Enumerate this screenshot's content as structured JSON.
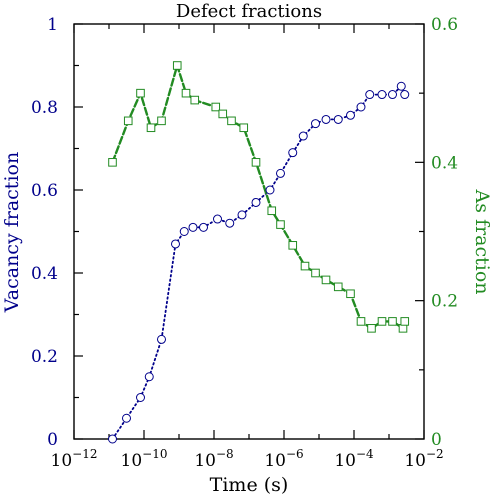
{
  "chart_data": {
    "type": "line",
    "title": "Defect fractions",
    "xlabel": "Time (s)",
    "x_scale": "log",
    "xlim_exponents": [
      -12,
      -2
    ],
    "x_ticks": [
      {
        "base": "10",
        "exp": "−12"
      },
      {
        "base": "10",
        "exp": "−10"
      },
      {
        "base": "10",
        "exp": "−8"
      },
      {
        "base": "10",
        "exp": "−6"
      },
      {
        "base": "10",
        "exp": "−4"
      },
      {
        "base": "10",
        "exp": "−2"
      }
    ],
    "left_axis": {
      "label": "Vacancy fraction",
      "color": "#00008b",
      "ylim": [
        0,
        1
      ],
      "ticks": [
        "0",
        "0.2",
        "0.4",
        "0.6",
        "0.8",
        "1"
      ],
      "tick_values": [
        0,
        0.2,
        0.4,
        0.6,
        0.8,
        1
      ]
    },
    "right_axis": {
      "label": "As fraction",
      "color": "#228b22",
      "ylim": [
        0,
        0.6
      ],
      "ticks": [
        "0",
        "0.2",
        "0.4",
        "0.6"
      ],
      "tick_values": [
        0,
        0.2,
        0.4,
        0.6
      ]
    },
    "series": [
      {
        "axis": "left",
        "color": "#00008b",
        "marker": "circle",
        "line_style": "dotted",
        "log10_x": [
          -10.9,
          -10.5,
          -10.1,
          -9.85,
          -9.5,
          -9.1,
          -8.85,
          -8.6,
          -8.3,
          -7.9,
          -7.55,
          -7.2,
          -6.8,
          -6.4,
          -6.1,
          -5.75,
          -5.45,
          -5.1,
          -4.8,
          -4.45,
          -4.1,
          -3.8,
          -3.55,
          -3.2,
          -2.9,
          -2.65,
          -2.55
        ],
        "values": [
          0.0,
          0.05,
          0.1,
          0.15,
          0.24,
          0.47,
          0.5,
          0.51,
          0.51,
          0.53,
          0.52,
          0.54,
          0.57,
          0.6,
          0.64,
          0.69,
          0.73,
          0.76,
          0.77,
          0.77,
          0.78,
          0.8,
          0.83,
          0.83,
          0.83,
          0.85,
          0.83
        ]
      },
      {
        "axis": "right",
        "color": "#228b22",
        "marker": "square",
        "line_style": "dashed",
        "log10_x": [
          -10.9,
          -10.45,
          -10.1,
          -9.8,
          -9.5,
          -9.05,
          -8.8,
          -8.55,
          -7.95,
          -7.75,
          -7.5,
          -7.15,
          -6.8,
          -6.35,
          -6.1,
          -5.75,
          -5.4,
          -5.1,
          -4.8,
          -4.45,
          -4.1,
          -3.8,
          -3.5,
          -3.2,
          -2.9,
          -2.6,
          -2.55
        ],
        "values": [
          0.4,
          0.46,
          0.5,
          0.45,
          0.46,
          0.54,
          0.5,
          0.49,
          0.48,
          0.47,
          0.46,
          0.45,
          0.4,
          0.33,
          0.31,
          0.28,
          0.25,
          0.24,
          0.23,
          0.22,
          0.21,
          0.17,
          0.16,
          0.17,
          0.17,
          0.16,
          0.17
        ]
      }
    ]
  }
}
